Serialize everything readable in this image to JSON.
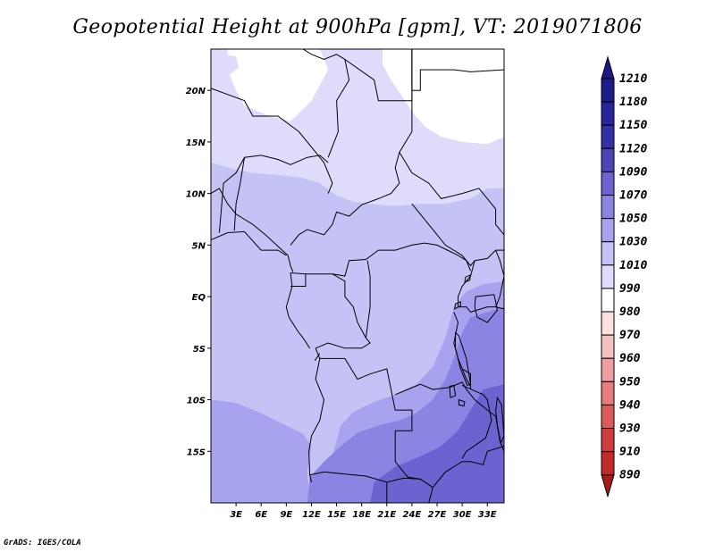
{
  "title": "Geopotential Height at 900hPa [gpm], VT: 2019071806",
  "footer": "GrADS: IGES/COLA",
  "chart_data": {
    "type": "heatmap",
    "title": "Geopotential Height at 900hPa [gpm], VT: 2019071806",
    "variable": "Geopotential Height",
    "level": "900hPa",
    "units": "gpm",
    "valid_time": "2019071806",
    "lon_range": [
      0,
      35
    ],
    "lat_range": [
      -20,
      24
    ],
    "x_ticks": [
      "3E",
      "6E",
      "9E",
      "12E",
      "15E",
      "18E",
      "21E",
      "24E",
      "27E",
      "30E",
      "33E"
    ],
    "x_tick_values": [
      3,
      6,
      9,
      12,
      15,
      18,
      21,
      24,
      27,
      30,
      33
    ],
    "y_ticks": [
      "20N",
      "15N",
      "10N",
      "5N",
      "EQ",
      "5S",
      "10S",
      "15S"
    ],
    "y_tick_values": [
      20,
      15,
      10,
      5,
      0,
      -5,
      -10,
      -15
    ],
    "colorbar_levels": [
      1210,
      1180,
      1150,
      1120,
      1090,
      1070,
      1050,
      1030,
      1010,
      990,
      980,
      970,
      960,
      950,
      940,
      930,
      910,
      890
    ],
    "colorbar_colors": [
      "#1e1b8a",
      "#282499",
      "#3330a8",
      "#4a46b8",
      "#6a63d0",
      "#8a84e3",
      "#a7a3ee",
      "#c5c3f5",
      "#dedcfa",
      "#ffffff",
      "#fbe0e0",
      "#f5c2c2",
      "#ef9f9f",
      "#e67c7c",
      "#dc5a5a",
      "#d03c3c",
      "#c02a2a",
      "#ab1f1f"
    ],
    "colorbar_top_color": "#1c1a80",
    "colorbar_bottom_color": "#a51c1c",
    "fill_colors": {
      "white": "#ffffff",
      "c1010": "#dedcfa",
      "c1030": "#c5c3f5",
      "c1050": "#a7a3ee",
      "c1070": "#8a84e3",
      "c1090": "#6a63d0"
    }
  }
}
